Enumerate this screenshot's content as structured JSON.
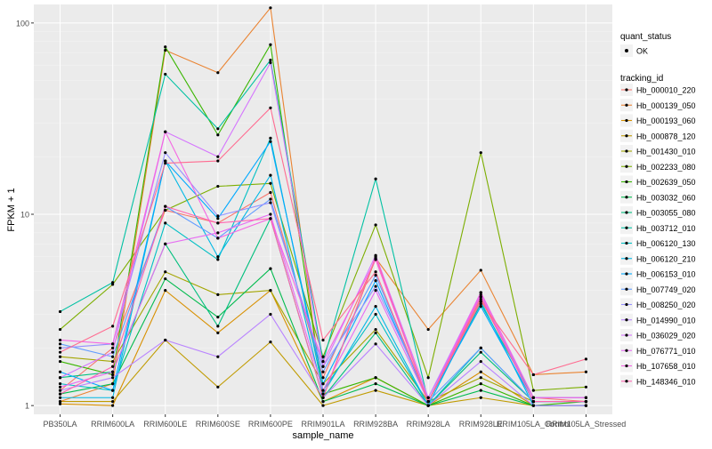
{
  "chart_data": {
    "type": "line",
    "xlabel": "sample_name",
    "ylabel": "FPKM + 1",
    "y_scale": "log10",
    "ylim": [
      0.9,
      125
    ],
    "y_ticks": [
      1,
      10,
      100
    ],
    "y_tick_labels": [
      "1",
      "10",
      "100"
    ],
    "grid": true,
    "categories": [
      "PB350LA",
      "RRIM600LA",
      "RRIM600LE",
      "RRIM600SE",
      "RRIM600PE",
      "RRIM901LA",
      "RRIM928BA",
      "RRIM928LA",
      "RRIM928LE",
      "RRIM105LA_Control",
      "RRIM105LA_Stressed"
    ],
    "legend_position": "right",
    "legend_shape": {
      "title": "quant_status",
      "entries": [
        "OK"
      ]
    },
    "legend_color_title": "tracking_id",
    "series": [
      {
        "name": "Hb_000010_220",
        "color": "#F8766D",
        "values": [
          1.2,
          2.0,
          10.5,
          9.0,
          13.0,
          1.4,
          5.8,
          1.05,
          3.6,
          1.1,
          1.05
        ]
      },
      {
        "name": "Hb_000139_050",
        "color": "#EA8331",
        "values": [
          1.05,
          1.3,
          72.0,
          55.0,
          120.0,
          1.1,
          5.9,
          2.5,
          5.1,
          1.45,
          1.5
        ]
      },
      {
        "name": "Hb_000193_060",
        "color": "#D89000",
        "values": [
          1.02,
          1.0,
          4.0,
          2.4,
          4.0,
          1.05,
          1.4,
          1.0,
          1.5,
          1.0,
          1.0
        ]
      },
      {
        "name": "Hb_000878_120",
        "color": "#C09B00",
        "values": [
          1.05,
          1.05,
          2.2,
          1.25,
          2.15,
          1.0,
          1.2,
          1.0,
          1.1,
          1.0,
          1.0
        ]
      },
      {
        "name": "Hb_001430_010",
        "color": "#A3A500",
        "values": [
          1.8,
          1.7,
          5.0,
          3.8,
          4.0,
          1.3,
          2.5,
          1.05,
          1.4,
          1.05,
          1.05
        ]
      },
      {
        "name": "Hb_002233_080",
        "color": "#7CAE00",
        "values": [
          2.5,
          4.3,
          10.5,
          14.0,
          14.5,
          1.8,
          8.8,
          1.4,
          21.0,
          1.2,
          1.25
        ]
      },
      {
        "name": "Hb_002639_050",
        "color": "#39B600",
        "values": [
          1.7,
          1.45,
          75.0,
          26.0,
          77.0,
          1.15,
          1.4,
          1.0,
          1.3,
          1.0,
          1.05
        ]
      },
      {
        "name": "Hb_003032_060",
        "color": "#00BB4E",
        "values": [
          1.15,
          1.3,
          4.6,
          2.9,
          5.2,
          1.05,
          1.3,
          1.0,
          1.2,
          1.0,
          1.0
        ]
      },
      {
        "name": "Hb_003055_080",
        "color": "#00BF7D",
        "values": [
          1.4,
          1.5,
          7.0,
          2.6,
          9.5,
          1.1,
          2.4,
          1.0,
          1.9,
          1.05,
          1.05
        ]
      },
      {
        "name": "Hb_003712_010",
        "color": "#00C1A3",
        "values": [
          3.1,
          4.4,
          54.0,
          28.0,
          64.0,
          1.7,
          15.3,
          1.05,
          3.4,
          1.1,
          1.1
        ]
      },
      {
        "name": "Hb_006120_130",
        "color": "#00BFC4",
        "values": [
          1.3,
          1.2,
          9.0,
          5.8,
          25.0,
          1.2,
          3.0,
          1.0,
          2.0,
          1.05,
          1.05
        ]
      },
      {
        "name": "Hb_006120_210",
        "color": "#00B8E5",
        "values": [
          1.1,
          1.1,
          19.0,
          6.0,
          16.0,
          1.15,
          3.3,
          1.0,
          3.5,
          1.0,
          1.0
        ]
      },
      {
        "name": "Hb_006153_010",
        "color": "#00A9FF",
        "values": [
          1.5,
          1.2,
          19.0,
          9.5,
          24.0,
          1.3,
          4.5,
          1.05,
          3.3,
          1.05,
          1.05
        ]
      },
      {
        "name": "Hb_007749_020",
        "color": "#619CFF",
        "values": [
          2.1,
          1.8,
          11.0,
          7.5,
          12.0,
          1.5,
          4.8,
          1.05,
          2.0,
          1.05,
          1.05
        ]
      },
      {
        "name": "Hb_008250_020",
        "color": "#9590FF",
        "values": [
          2.0,
          2.1,
          21.0,
          9.8,
          11.5,
          1.6,
          4.2,
          1.1,
          3.7,
          1.1,
          1.1
        ]
      },
      {
        "name": "Hb_014990_010",
        "color": "#B983FF",
        "values": [
          1.2,
          1.4,
          2.2,
          1.8,
          3.0,
          1.1,
          2.1,
          1.0,
          1.7,
          1.0,
          1.0
        ]
      },
      {
        "name": "Hb_036029_020",
        "color": "#D575FE",
        "values": [
          1.4,
          1.9,
          27.0,
          20.0,
          62.0,
          1.6,
          6.1,
          1.1,
          3.9,
          1.1,
          1.1
        ]
      },
      {
        "name": "Hb_076771_010",
        "color": "#E76BF3",
        "values": [
          1.25,
          1.5,
          7.0,
          8.0,
          10.0,
          1.2,
          4.0,
          1.05,
          3.8,
          1.05,
          1.05
        ]
      },
      {
        "name": "Hb_107658_010",
        "color": "#F564E3",
        "values": [
          2.2,
          2.1,
          27.0,
          7.5,
          9.5,
          1.7,
          5.8,
          1.05,
          3.9,
          1.1,
          1.1
        ]
      },
      {
        "name": "Hb_148346_010",
        "color": "#FF64B0",
        "values": [
          1.15,
          1.6,
          11.0,
          9.0,
          9.5,
          1.1,
          6.0,
          1.05,
          3.7,
          1.05,
          1.05
        ]
      },
      {
        "name": "",
        "color": "#FF6C91",
        "values": [
          1.9,
          2.6,
          18.5,
          19.0,
          36.0,
          2.2,
          5.0,
          1.05,
          3.5,
          1.45,
          1.75
        ]
      }
    ]
  }
}
